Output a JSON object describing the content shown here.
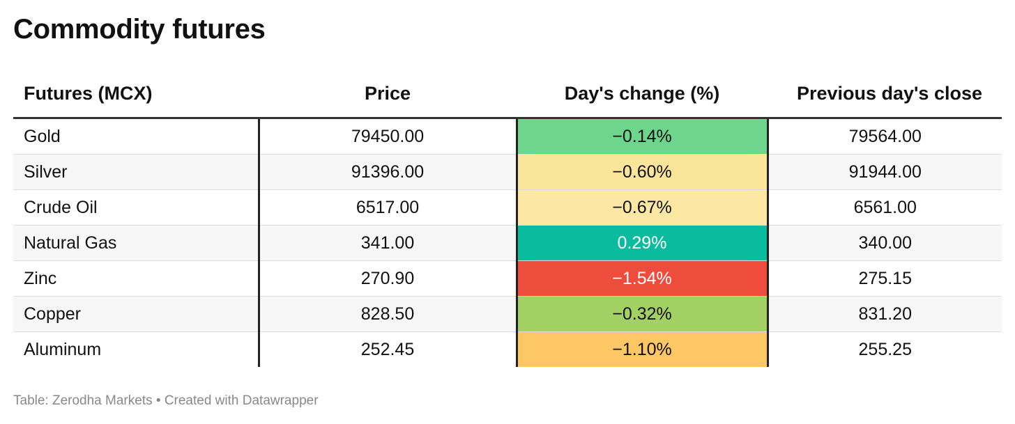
{
  "title": "Commodity futures",
  "footer": {
    "source": "Table: Zerodha Markets",
    "separator": "•",
    "credit": "Created with Datawrapper"
  },
  "colors": {
    "strong_positive": "#0bbb9d",
    "positive_green": "#6dd68c",
    "light_green": "#a3d062",
    "pale_yellow": "#fae59a",
    "light_yellow": "#fce7a3",
    "orange": "#fdc864",
    "red": "#ee4c3d"
  },
  "chart_data": {
    "type": "table",
    "columns": [
      "Futures (MCX)",
      "Price",
      "Day's change (%)",
      "Previous day's close"
    ],
    "rows": [
      {
        "name": "Gold",
        "price": "79450.00",
        "change": "−0.14%",
        "change_value": -0.14,
        "prev_close": "79564.00",
        "color": "#6dd68c",
        "text_color": "#111111"
      },
      {
        "name": "Silver",
        "price": "91396.00",
        "change": "−0.60%",
        "change_value": -0.6,
        "prev_close": "91944.00",
        "color": "#fae59a",
        "text_color": "#111111"
      },
      {
        "name": "Crude Oil",
        "price": "6517.00",
        "change": "−0.67%",
        "change_value": -0.67,
        "prev_close": "6561.00",
        "color": "#fce7a3",
        "text_color": "#111111"
      },
      {
        "name": "Natural Gas",
        "price": "341.00",
        "change": "0.29%",
        "change_value": 0.29,
        "prev_close": "340.00",
        "color": "#0bbb9d",
        "text_color": "#ffffff"
      },
      {
        "name": "Zinc",
        "price": "270.90",
        "change": "−1.54%",
        "change_value": -1.54,
        "prev_close": "275.15",
        "color": "#ee4c3d",
        "text_color": "#ffffff"
      },
      {
        "name": "Copper",
        "price": "828.50",
        "change": "−0.32%",
        "change_value": -0.32,
        "prev_close": "831.20",
        "color": "#a3d062",
        "text_color": "#111111"
      },
      {
        "name": "Aluminum",
        "price": "252.45",
        "change": "−1.10%",
        "change_value": -1.1,
        "prev_close": "255.25",
        "color": "#fdc864",
        "text_color": "#111111"
      }
    ]
  }
}
